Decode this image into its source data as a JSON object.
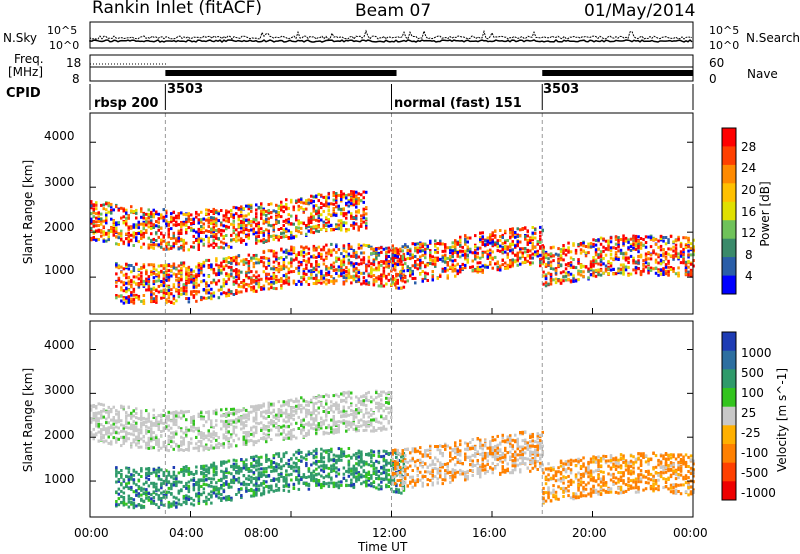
{
  "header": {
    "station": "Rankin Inlet (fitACF)",
    "beam": "Beam 07",
    "date": "01/May/2014"
  },
  "noise_panel": {
    "left_label": "N.Sky",
    "right_label": "N.Search",
    "left_ticks": [
      "10^5",
      "10^0"
    ],
    "right_ticks": [
      "10^5",
      "10^0"
    ]
  },
  "freq_panel": {
    "left_label_1": "Freq.",
    "left_label_2": "[MHz]",
    "left_ticks": [
      "18",
      "8"
    ],
    "right_label": "Nave",
    "right_ticks": [
      "60",
      "0"
    ]
  },
  "cpid_panel": {
    "label": "CPID",
    "segments": [
      {
        "text": "rbsp 200",
        "start": "00:00"
      },
      {
        "text": "3503",
        "start": "03:00"
      },
      {
        "text": "normal (fast) 151",
        "start": "12:00"
      },
      {
        "text": "3503",
        "start": "18:00"
      }
    ]
  },
  "x_axis": {
    "title": "Time UT",
    "ticks": [
      "00:00",
      "04:00",
      "08:00",
      "12:00",
      "16:00",
      "20:00",
      "00:00"
    ],
    "tick_hours": [
      0,
      4,
      8,
      12,
      16,
      20,
      24
    ]
  },
  "y_axis": {
    "title": "Slant Range [km]",
    "ticks": [
      "1000",
      "2000",
      "3000",
      "4000"
    ],
    "tick_values": [
      1000,
      2000,
      3000,
      4000
    ]
  },
  "power_colorbar": {
    "title": "Power [dB]",
    "ticks": [
      "28",
      "24",
      "20",
      "16",
      "12",
      "8",
      "4"
    ],
    "colors": [
      "#ff0000",
      "#ff4000",
      "#ff8a00",
      "#ffc000",
      "#e0e000",
      "#6fc25a",
      "#3a8a6a",
      "#2a5ea8",
      "#0000ff"
    ]
  },
  "velocity_colorbar": {
    "title": "Velocity [m s^-1]",
    "ticks": [
      "1000",
      "500",
      "100",
      "25",
      "-25",
      "-100",
      "-500",
      "-1000"
    ],
    "colors": [
      "#1e3cb4",
      "#2d6fa0",
      "#2f9a6a",
      "#33c41e",
      "#c8c8c8",
      "#ffb000",
      "#ff8000",
      "#ff4000",
      "#ee0000"
    ]
  },
  "chart_data": {
    "type": "heatmap",
    "title": "Rankin Inlet (fitACF) Beam 07 01/May/2014",
    "xlabel": "Time UT",
    "ylabel": "Slant Range [km]",
    "xlim_hours": [
      0,
      24
    ],
    "ylim_km": [
      180,
      4650
    ],
    "mode_changes_hours": [
      3,
      12,
      18
    ],
    "power_bands": [
      {
        "t_start": 0.0,
        "t_end": 11.0,
        "center_km": 2300,
        "level": "high"
      },
      {
        "t_start": 1.0,
        "t_end": 12.5,
        "center_km": 1100,
        "level": "high"
      },
      {
        "t_start": 12.0,
        "t_end": 18.0,
        "center_km": 1500,
        "level": "medium"
      },
      {
        "t_start": 18.0,
        "t_end": 24.0,
        "center_km": 1300,
        "level": "high"
      }
    ],
    "velocity_bands": [
      {
        "t_start": 0.0,
        "t_end": 12.0,
        "center_km": 2400,
        "level": "-25 to 25"
      },
      {
        "t_start": 1.0,
        "t_end": 12.5,
        "center_km": 1100,
        "level": "25 to 100"
      },
      {
        "t_start": 12.0,
        "t_end": 18.0,
        "center_km": 1500,
        "level": "-100"
      },
      {
        "t_start": 18.0,
        "t_end": 24.0,
        "center_km": 1000,
        "level": "-500"
      }
    ]
  }
}
